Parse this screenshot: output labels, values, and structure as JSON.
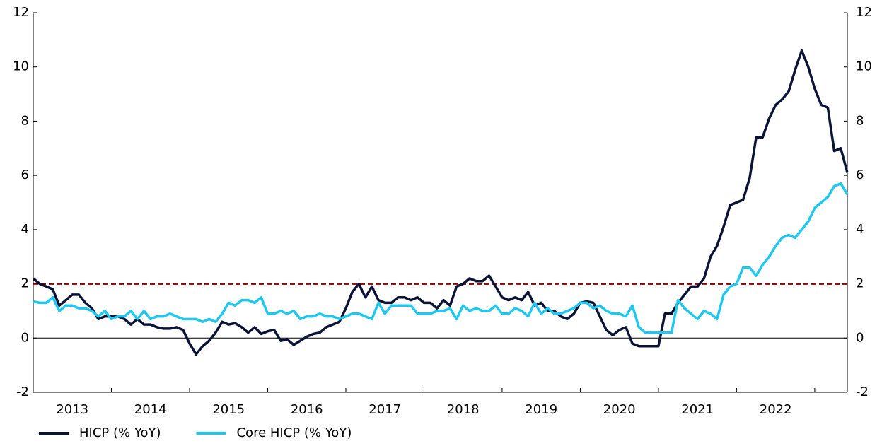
{
  "chart_data": {
    "type": "line",
    "x": [
      2013,
      2013.083,
      2013.167,
      2013.25,
      2013.333,
      2013.417,
      2013.5,
      2013.583,
      2013.667,
      2013.75,
      2013.833,
      2013.917,
      2014,
      2014.083,
      2014.167,
      2014.25,
      2014.333,
      2014.417,
      2014.5,
      2014.583,
      2014.667,
      2014.75,
      2014.833,
      2014.917,
      2015,
      2015.083,
      2015.167,
      2015.25,
      2015.333,
      2015.417,
      2015.5,
      2015.583,
      2015.667,
      2015.75,
      2015.833,
      2015.917,
      2016,
      2016.083,
      2016.167,
      2016.25,
      2016.333,
      2016.417,
      2016.5,
      2016.583,
      2016.667,
      2016.75,
      2016.833,
      2016.917,
      2017,
      2017.083,
      2017.167,
      2017.25,
      2017.333,
      2017.417,
      2017.5,
      2017.583,
      2017.667,
      2017.75,
      2017.833,
      2017.917,
      2018,
      2018.083,
      2018.167,
      2018.25,
      2018.333,
      2018.417,
      2018.5,
      2018.583,
      2018.667,
      2018.75,
      2018.833,
      2018.917,
      2019,
      2019.083,
      2019.167,
      2019.25,
      2019.333,
      2019.417,
      2019.5,
      2019.583,
      2019.667,
      2019.75,
      2019.833,
      2019.917,
      2020,
      2020.083,
      2020.167,
      2020.25,
      2020.333,
      2020.417,
      2020.5,
      2020.583,
      2020.667,
      2020.75,
      2020.833,
      2020.917,
      2021,
      2021.083,
      2021.167,
      2021.25,
      2021.333,
      2021.417,
      2021.5,
      2021.583,
      2021.667,
      2021.75,
      2021.833,
      2021.917,
      2022,
      2022.083,
      2022.167,
      2022.25,
      2022.333,
      2022.417,
      2022.5,
      2022.583,
      2022.667,
      2022.75,
      2022.833,
      2022.917,
      2023,
      2023.083,
      2023.167,
      2023.25,
      2023.333,
      2023.417
    ],
    "series": [
      {
        "name": "HICP (% YoY)",
        "color": "#0b1436",
        "values": [
          2.2,
          2.0,
          1.9,
          1.8,
          1.2,
          1.4,
          1.6,
          1.6,
          1.3,
          1.1,
          0.7,
          0.8,
          0.8,
          0.8,
          0.7,
          0.5,
          0.7,
          0.5,
          0.5,
          0.4,
          0.35,
          0.35,
          0.4,
          0.3,
          -0.2,
          -0.6,
          -0.3,
          -0.1,
          0.2,
          0.6,
          0.5,
          0.55,
          0.4,
          0.2,
          0.4,
          0.15,
          0.25,
          0.3,
          -0.1,
          -0.05,
          -0.25,
          -0.1,
          0.05,
          0.15,
          0.2,
          0.4,
          0.5,
          0.6,
          1.1,
          1.7,
          2.0,
          1.5,
          1.9,
          1.4,
          1.3,
          1.3,
          1.5,
          1.5,
          1.4,
          1.5,
          1.3,
          1.3,
          1.1,
          1.4,
          1.2,
          1.9,
          2.0,
          2.2,
          2.1,
          2.1,
          2.3,
          1.9,
          1.5,
          1.4,
          1.5,
          1.4,
          1.7,
          1.2,
          1.3,
          1.0,
          1.0,
          0.8,
          0.7,
          0.9,
          1.3,
          1.35,
          1.3,
          0.8,
          0.3,
          0.1,
          0.3,
          0.4,
          -0.2,
          -0.3,
          -0.3,
          -0.3,
          -0.3,
          0.9,
          0.9,
          1.3,
          1.6,
          1.9,
          1.9,
          2.2,
          3.0,
          3.4,
          4.1,
          4.9,
          5.0,
          5.1,
          5.9,
          7.4,
          7.4,
          8.1,
          8.6,
          8.8,
          9.1,
          9.9,
          10.6,
          10.0,
          9.2,
          8.6,
          8.5,
          6.9,
          7.0,
          6.1
        ]
      },
      {
        "name": "Core HICP (% YoY)",
        "color": "#1ec8f0",
        "values": [
          1.35,
          1.3,
          1.3,
          1.5,
          1.0,
          1.2,
          1.2,
          1.1,
          1.1,
          1.0,
          0.8,
          1.0,
          0.7,
          0.8,
          0.8,
          1.0,
          0.7,
          1.0,
          0.7,
          0.8,
          0.8,
          0.9,
          0.8,
          0.7,
          0.7,
          0.7,
          0.6,
          0.7,
          0.6,
          0.9,
          1.3,
          1.2,
          1.4,
          1.4,
          1.3,
          1.5,
          0.9,
          0.9,
          1.0,
          0.9,
          1.0,
          0.7,
          0.8,
          0.8,
          0.9,
          0.8,
          0.8,
          0.7,
          0.8,
          0.9,
          0.9,
          0.8,
          0.7,
          1.3,
          0.9,
          1.2,
          1.2,
          1.2,
          1.2,
          0.9,
          0.9,
          0.9,
          1.0,
          1.0,
          1.1,
          0.7,
          1.2,
          1.0,
          1.1,
          1.0,
          1.0,
          1.2,
          0.9,
          0.9,
          1.1,
          1.0,
          0.8,
          1.3,
          0.9,
          1.1,
          0.9,
          0.9,
          1.0,
          1.1,
          1.3,
          1.3,
          1.1,
          1.2,
          1.0,
          0.9,
          0.9,
          0.8,
          1.2,
          0.4,
          0.2,
          0.2,
          0.2,
          0.2,
          0.2,
          1.4,
          1.1,
          0.9,
          0.7,
          1.0,
          0.9,
          0.7,
          1.6,
          1.9,
          2.0,
          2.6,
          2.6,
          2.3,
          2.7,
          3.0,
          3.4,
          3.7,
          3.8,
          3.7,
          4.0,
          4.3,
          4.8,
          5.0,
          5.2,
          5.6,
          5.7,
          5.3
        ]
      }
    ],
    "xlim": [
      2013,
      2023.417
    ],
    "xticks": [
      {
        "value": 2013.5,
        "label": "2013"
      },
      {
        "value": 2014.5,
        "label": "2014"
      },
      {
        "value": 2015.5,
        "label": "2015"
      },
      {
        "value": 2016.5,
        "label": "2016"
      },
      {
        "value": 2017.5,
        "label": "2017"
      },
      {
        "value": 2018.5,
        "label": "2018"
      },
      {
        "value": 2019.5,
        "label": "2019"
      },
      {
        "value": 2020.5,
        "label": "2020"
      },
      {
        "value": 2021.5,
        "label": "2021"
      },
      {
        "value": 2022.5,
        "label": "2022"
      }
    ],
    "ylim": [
      -2,
      12
    ],
    "yticks": [
      -2,
      0,
      2,
      4,
      6,
      8,
      10,
      12
    ],
    "y2lim": [
      -2,
      12
    ],
    "y2ticks": [
      -2,
      0,
      2,
      4,
      6,
      8,
      10,
      12
    ],
    "reference_lines": [
      {
        "value": 2,
        "color": "#8b0000",
        "dashed": true
      },
      {
        "value": 0,
        "color": "#000000",
        "dashed": false
      }
    ],
    "legend": "bottom-left"
  }
}
